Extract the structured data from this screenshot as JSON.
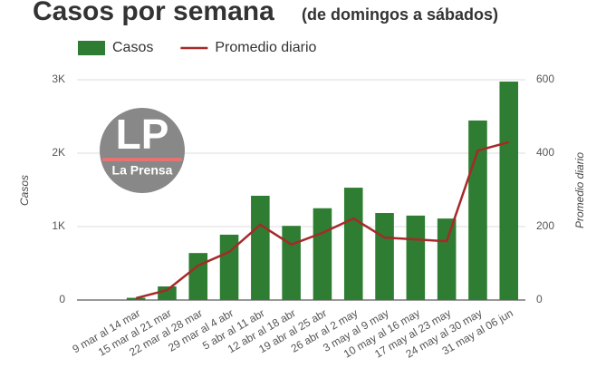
{
  "chart_data": {
    "type": "bar",
    "title": "Casos por semana",
    "subtitle": "(de domingos a sábados)",
    "categories": [
      "9 mar al 14 mar",
      "15 mar al 21 mar",
      "22 mar al 28 mar",
      "29 mar al 4 abr",
      "5 abr al 11 abr",
      "12 abr al 18 abr",
      "19 abr al 25 abr",
      "26 abr al 2 may",
      "3 may al 9 may",
      "10 may al 16 may",
      "17 may al 23 may",
      "24 may al 30 may",
      "31 may al 06 jun"
    ],
    "series": [
      {
        "name": "Casos",
        "type": "bar",
        "color": "#2e7d32",
        "values": [
          30,
          185,
          640,
          890,
          1420,
          1010,
          1250,
          1530,
          1185,
          1150,
          1110,
          2445,
          2975
        ]
      },
      {
        "name": "Promedio diario",
        "type": "line",
        "axis": "y2",
        "color": "#a52a2a",
        "values": [
          5,
          27,
          94,
          131,
          205,
          151,
          183,
          222,
          170,
          165,
          160,
          407,
          430
        ]
      }
    ],
    "ylabel": "Casos",
    "y2label": "Promedio diario",
    "ylim": [
      0,
      3000
    ],
    "yticks": [
      0,
      {
        "value": 1000,
        "label": "1K"
      },
      {
        "value": 2000,
        "label": "2K"
      },
      {
        "value": 3000,
        "label": "3K"
      }
    ],
    "y2lim": [
      0,
      600
    ],
    "y2ticks": [
      0,
      200,
      400,
      600
    ],
    "grid": true
  },
  "logo": {
    "initials": "LP",
    "name": "La Prensa"
  }
}
